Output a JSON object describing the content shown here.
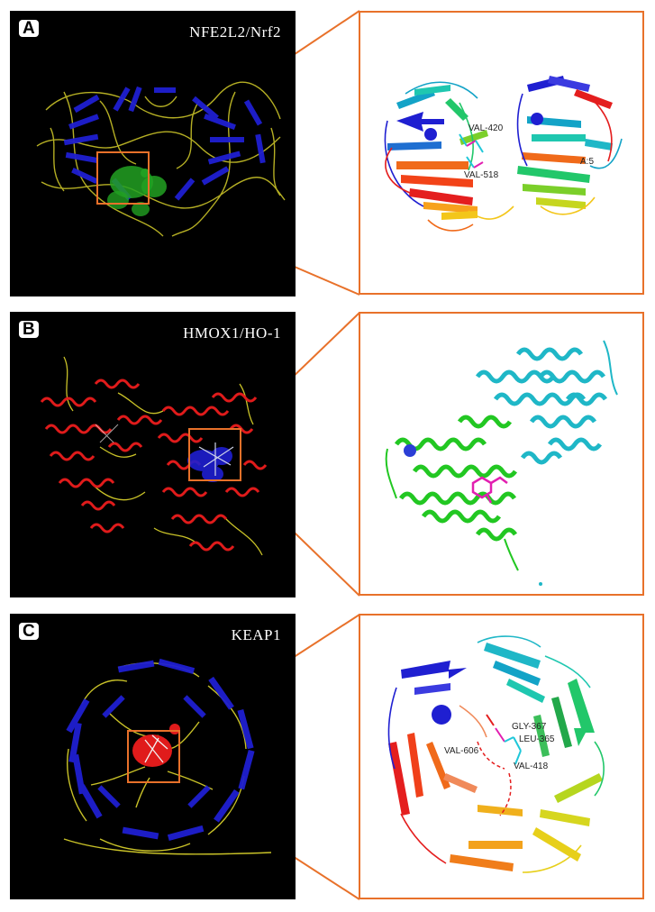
{
  "panels": [
    {
      "letter": "A",
      "protein": "NFE2L2/Nrf2",
      "residues": [
        "VAL-420",
        "VAL-518",
        "A:5"
      ]
    },
    {
      "letter": "B",
      "protein": "HMOX1/HO-1",
      "residues": []
    },
    {
      "letter": "C",
      "protein": "KEAP1",
      "residues": [
        "VAL-606",
        "GLY-367",
        "LEU-365",
        "VAL-418"
      ]
    }
  ],
  "colors": {
    "connector": "#e8712a",
    "sheet_blue": "#1f1fd1",
    "loop_yellow": "#c9c228",
    "helix_red": "#e01b1b",
    "ligand_green": "#22a122",
    "helix_cyan": "#1fb7c7"
  }
}
